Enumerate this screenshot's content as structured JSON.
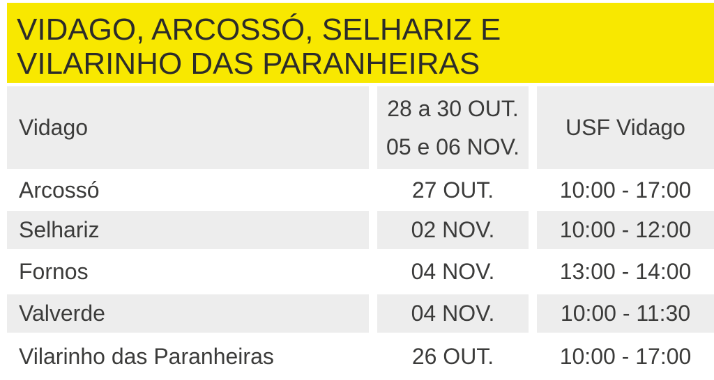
{
  "banner": {
    "title_line1": "VIDAGO, ARCOSSÓ, SELHARIZ E",
    "title_line2": "VILARINHO DAS PARANHEIRAS"
  },
  "table": {
    "header_row": {
      "location": "Vidago",
      "dates": [
        "28 a 30 OUT.",
        "05 e 06 NOV."
      ],
      "place": "USF Vidago"
    },
    "rows": [
      {
        "location": "Arcossó",
        "date": "27 OUT.",
        "time": "10:00 - 17:00"
      },
      {
        "location": "Selhariz",
        "date": "02 NOV.",
        "time": "10:00 - 12:00"
      },
      {
        "location": "Fornos",
        "date": "04 NOV.",
        "time": "13:00 - 14:00"
      },
      {
        "location": "Valverde",
        "date": "04 NOV.",
        "time": "10:00 - 11:30"
      },
      {
        "location": "Vilarinho das Paranheiras",
        "date": "26 OUT.",
        "time": "10:00 - 17:00"
      }
    ]
  },
  "colors": {
    "page-bg": "#ffffff",
    "banner-bg": "#f8e800",
    "title-text": "#2c2c2a",
    "body-text": "#3b3b3a",
    "row-alt-bg": "#ededed"
  }
}
